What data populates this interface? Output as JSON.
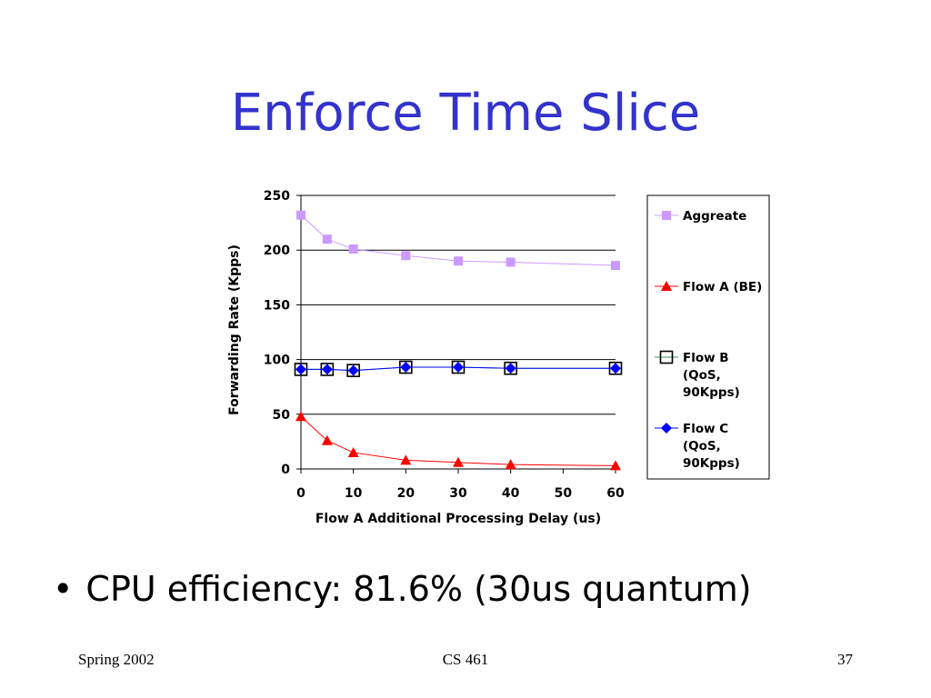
{
  "slide": {
    "title": "Enforce Time Slice",
    "bullet": "CPU efficiency: 81.6% (30us quantum)",
    "footer_left": "Spring 2002",
    "footer_center": "CS 461",
    "footer_right": "37"
  },
  "colors": {
    "title": "#3333cc",
    "aggregate": "#cc99ff",
    "flow_a": "#ff0000",
    "flow_b": "#339966",
    "flow_c": "#0000ff"
  },
  "chart_data": {
    "type": "line",
    "xlabel": "Flow A Additional Processing Delay (us)",
    "ylabel": "Forwarding Rate (Kpps)",
    "xlim": [
      0,
      60
    ],
    "ylim": [
      0,
      250
    ],
    "x_ticks": [
      "0",
      "10",
      "20",
      "30",
      "40",
      "50",
      "60"
    ],
    "y_ticks": [
      "0",
      "50",
      "100",
      "150",
      "200",
      "250"
    ],
    "grid": "horizontal",
    "legend_position": "right",
    "series": [
      {
        "name": "Aggreate",
        "marker": "square-filled",
        "x": [
          0,
          5,
          10,
          20,
          30,
          40,
          60
        ],
        "y": [
          232,
          210,
          201,
          195,
          190,
          189,
          186
        ]
      },
      {
        "name": "Flow A (BE)",
        "marker": "triangle-filled",
        "x": [
          0,
          5,
          10,
          20,
          30,
          40,
          60
        ],
        "y": [
          48,
          26,
          15,
          8,
          6,
          4,
          3
        ]
      },
      {
        "name": "Flow B (QoS, 90Kpps)",
        "legend_lines": [
          "Flow B",
          "(QoS,",
          "90Kpps)"
        ],
        "marker": "square-open",
        "x": [
          0,
          5,
          10,
          20,
          30,
          40,
          60
        ],
        "y": [
          91,
          91,
          90,
          93,
          93,
          92,
          92
        ]
      },
      {
        "name": "Flow C (QoS, 90Kpps)",
        "legend_lines": [
          "Flow C",
          "(QoS,",
          "90Kpps)"
        ],
        "marker": "diamond-filled",
        "x": [
          0,
          5,
          10,
          20,
          30,
          40,
          60
        ],
        "y": [
          91,
          91,
          90,
          93,
          93,
          92,
          92
        ]
      }
    ]
  }
}
